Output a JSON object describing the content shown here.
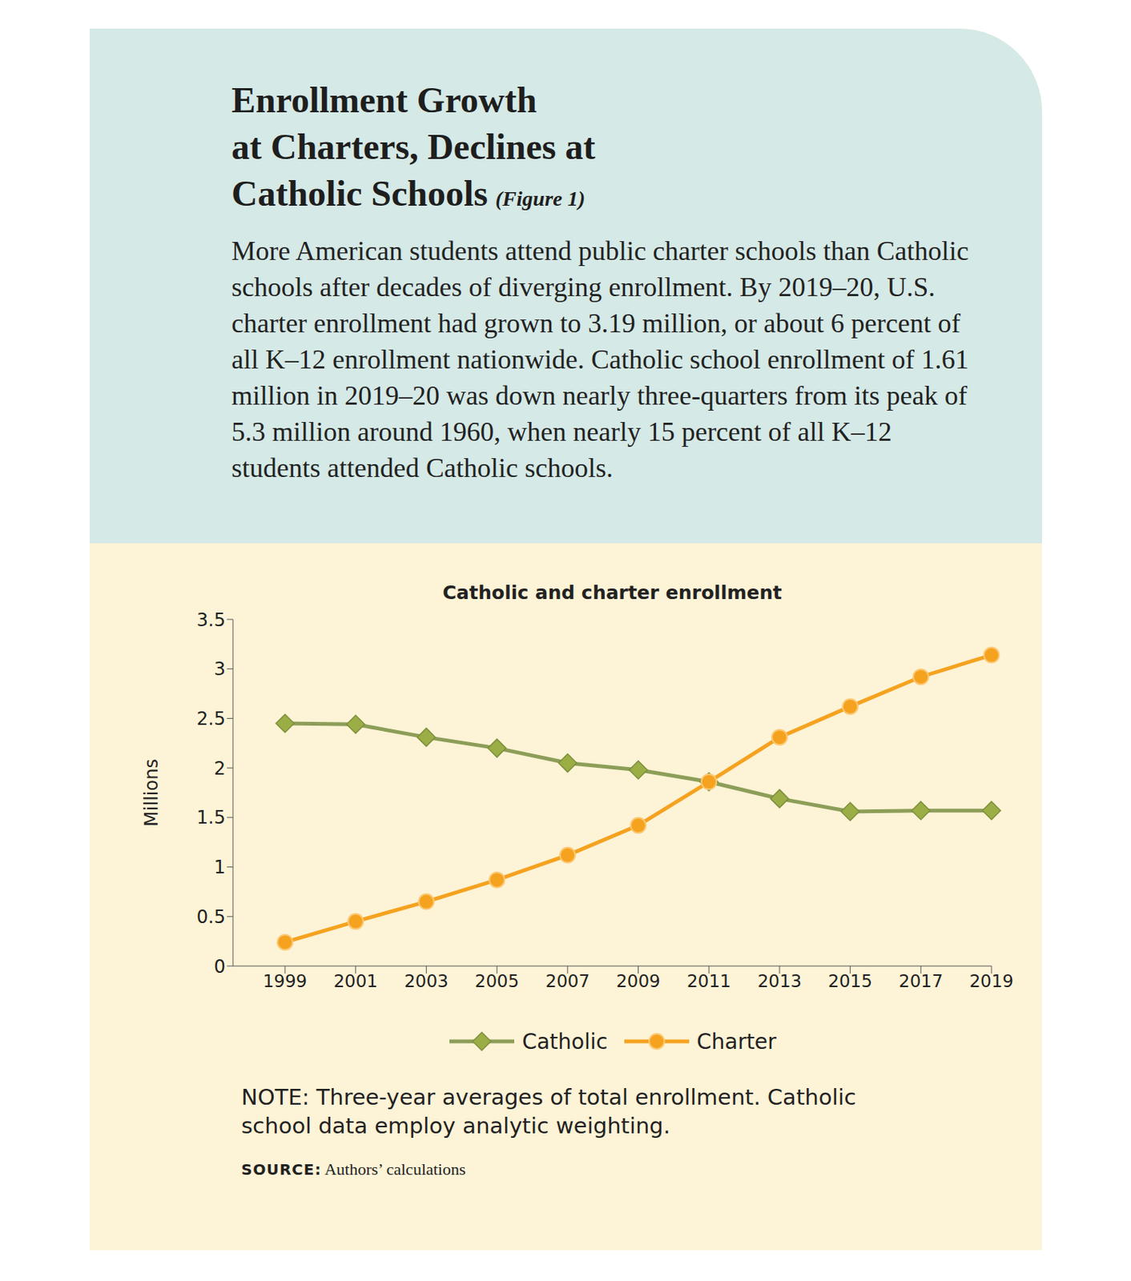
{
  "chart_data": {
    "type": "line",
    "title": [
      "Enrollment Growth",
      "at Charters, Declines at",
      "Catholic Schools"
    ],
    "figure_label": "(Figure 1)",
    "subtitle": "More American students attend public charter schools than Catholic schools after decades of diverging enrollment. By 2019–20, U.S. charter enrollment had grown to 3.19 million, or about 6 percent of all K–12 enrollment nationwide. Catholic school enrollment of 1.61 million in 2019–20 was down nearly three-quarters from its peak of 5.3 million around 1960, when nearly 15 percent of all K–12 students attended Catholic schools.",
    "chart_title": "Catholic and charter enrollment",
    "y_label": "Millions",
    "categories": [
      "1999",
      "2001",
      "2003",
      "2005",
      "2007",
      "2009",
      "2011",
      "2013",
      "2015",
      "2017",
      "2019"
    ],
    "series": [
      {
        "name": "Catholic",
        "color": "#8c9e58",
        "marker": "diamond",
        "values": [
          2.45,
          2.44,
          2.31,
          2.2,
          2.05,
          1.98,
          1.86,
          1.69,
          1.56,
          1.57,
          1.57
        ]
      },
      {
        "name": "Charter",
        "color": "#f5a21f",
        "marker": "circle",
        "values": [
          0.24,
          0.45,
          0.65,
          0.87,
          1.12,
          1.42,
          1.86,
          2.31,
          2.62,
          2.92,
          3.14
        ]
      }
    ],
    "ylim": [
      0,
      3.5
    ],
    "yticks": [
      0,
      0.5,
      1,
      1.5,
      2,
      2.5,
      3,
      3.5
    ],
    "grid": false,
    "legend": "bottom",
    "note": "NOTE: Three-year averages of total enrollment. Catholic school data employ analytic weighting.",
    "source_label": "SOURCE:",
    "source": "Authors’ calculations"
  }
}
